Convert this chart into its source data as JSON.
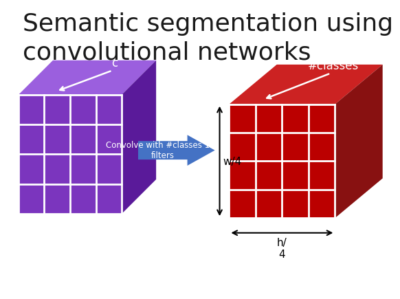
{
  "title": "Semantic segmentation using\nconvolutional networks",
  "title_fontsize": 26,
  "title_color": "#1a1a1a",
  "bg_color": "#ffffff",
  "purple_front": "#7B35BE",
  "purple_top": "#9B5FDE",
  "purple_side": "#5A1A9A",
  "red_front": "#BB0000",
  "red_top": "#CC2222",
  "red_side": "#881111",
  "arrow_color": "#4472C4",
  "arrow_text": "Convolve with #classes 1x1\nfilters",
  "grid_color": "#ffffff",
  "label_c": "c",
  "label_classes": "#classes",
  "label_w4": "w/4",
  "label_h4": "h/\n4"
}
